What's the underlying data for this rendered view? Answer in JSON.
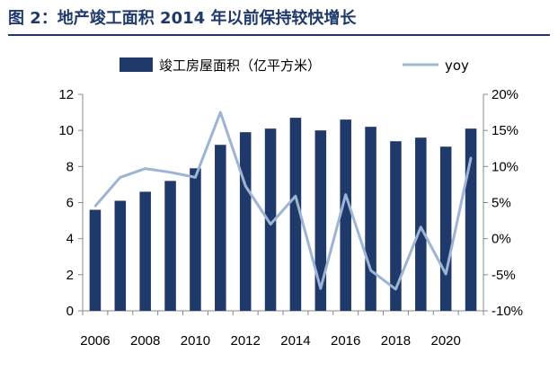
{
  "title": "图 2：地产竣工面积 2014 年以前保持较快增长",
  "chart_data": {
    "type": "bar+line",
    "categories": [
      "2006",
      "2007",
      "2008",
      "2009",
      "2010",
      "2011",
      "2012",
      "2013",
      "2014",
      "2015",
      "2016",
      "2017",
      "2018",
      "2019",
      "2020",
      "2021"
    ],
    "x_tick_labels": [
      "2006",
      "2008",
      "2010",
      "2012",
      "2014",
      "2016",
      "2018",
      "2020"
    ],
    "series": [
      {
        "name": "竣工房屋面积（亿平方米）",
        "type": "bar",
        "axis": "left",
        "values": [
          5.6,
          6.1,
          6.6,
          7.2,
          7.9,
          9.2,
          9.9,
          10.1,
          10.7,
          10.0,
          10.6,
          10.2,
          9.4,
          9.6,
          9.1,
          10.1
        ]
      },
      {
        "name": "yoy",
        "type": "line",
        "axis": "right",
        "values": [
          4.5,
          8.5,
          9.7,
          9.2,
          8.5,
          17.5,
          7.3,
          2.0,
          5.9,
          -6.9,
          6.1,
          -4.4,
          -7.0,
          1.6,
          -4.9,
          11.2
        ]
      }
    ],
    "y_left": {
      "min": 0,
      "max": 12,
      "ticks": [
        "0",
        "2",
        "4",
        "6",
        "8",
        "10",
        "12"
      ]
    },
    "y_right": {
      "min": -10,
      "max": 20,
      "ticks": [
        "-10%",
        "-5%",
        "0%",
        "5%",
        "10%",
        "15%",
        "20%"
      ]
    },
    "colors": {
      "bar": "#1f3a6a",
      "line": "#9db4d3",
      "title": "#1f3a6a"
    },
    "legend_position": "top"
  }
}
